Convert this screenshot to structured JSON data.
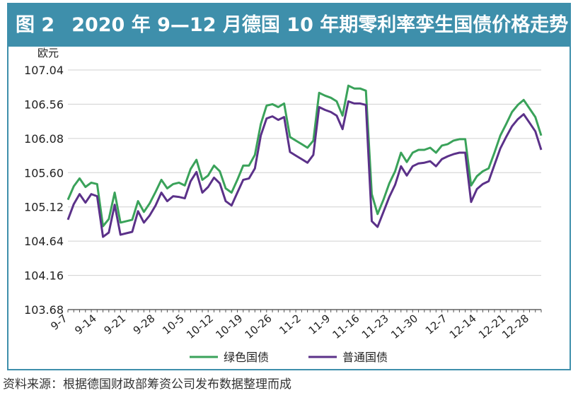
{
  "figure": {
    "label": "图 2",
    "title": "2020 年 9—12 月德国 10 年期零利率孪生国债价格走势"
  },
  "source_note": "资料来源：根据德国财政部筹资公司发布数据整理而成",
  "colors": {
    "green": "#3aa25a",
    "purple": "#5b3189",
    "frame": "#3e8fab",
    "grid": "#d0d0d0"
  },
  "chart_data": {
    "type": "line",
    "ylabel": "欧元",
    "xlabel": "",
    "ylim": [
      103.68,
      107.04
    ],
    "yticks": [
      "107.04",
      "106.56",
      "106.08",
      "105.60",
      "105.12",
      "104.64",
      "104.16",
      "103.68"
    ],
    "xticks": [
      "9-7",
      "9-14",
      "9-21",
      "9-28",
      "10-5",
      "10-12",
      "10-19",
      "10-26",
      "11-2",
      "11-9",
      "11-16",
      "11-23",
      "11-30",
      "12-7",
      "12-14",
      "12-21",
      "12-28"
    ],
    "grid": true,
    "legend_position": "bottom-center",
    "x": [
      "9-7",
      "9-8",
      "9-9",
      "9-10",
      "9-11",
      "9-14",
      "9-15",
      "9-16",
      "9-17",
      "9-18",
      "9-21",
      "9-22",
      "9-23",
      "9-24",
      "9-25",
      "9-28",
      "9-29",
      "9-30",
      "10-1",
      "10-2",
      "10-5",
      "10-6",
      "10-7",
      "10-8",
      "10-9",
      "10-12",
      "10-13",
      "10-14",
      "10-15",
      "10-16",
      "10-19",
      "10-20",
      "10-21",
      "10-22",
      "10-23",
      "10-26",
      "10-27",
      "10-28",
      "10-29",
      "10-30",
      "11-2",
      "11-3",
      "11-4",
      "11-5",
      "11-6",
      "11-9",
      "11-10",
      "11-11",
      "11-12",
      "11-13",
      "11-16",
      "11-17",
      "11-18",
      "11-19",
      "11-20",
      "11-23",
      "11-24",
      "11-25",
      "11-26",
      "11-27",
      "11-30",
      "12-1",
      "12-2",
      "12-3",
      "12-4",
      "12-7",
      "12-8",
      "12-9",
      "12-10",
      "12-11",
      "12-14",
      "12-15",
      "12-16",
      "12-17",
      "12-18",
      "12-21",
      "12-22",
      "12-23",
      "12-24",
      "12-28",
      "12-29",
      "12-30"
    ],
    "series": [
      {
        "name": "绿色国债",
        "color": "#3aa25a",
        "values": [
          105.22,
          105.41,
          105.52,
          105.4,
          105.46,
          105.44,
          104.85,
          104.95,
          105.32,
          104.9,
          104.92,
          104.94,
          105.2,
          105.05,
          105.17,
          105.33,
          105.5,
          105.38,
          105.44,
          105.46,
          105.42,
          105.65,
          105.78,
          105.5,
          105.56,
          105.7,
          105.62,
          105.38,
          105.32,
          105.5,
          105.7,
          105.7,
          105.85,
          106.28,
          106.54,
          106.56,
          106.52,
          106.57,
          106.1,
          106.05,
          106.0,
          105.95,
          106.05,
          106.72,
          106.68,
          106.65,
          106.6,
          106.4,
          106.82,
          106.78,
          106.78,
          106.75,
          105.3,
          105.02,
          105.22,
          105.45,
          105.62,
          105.88,
          105.75,
          105.88,
          105.92,
          105.92,
          105.95,
          105.88,
          105.98,
          106.0,
          106.05,
          106.07,
          106.07,
          105.42,
          105.55,
          105.62,
          105.66,
          105.88,
          106.12,
          106.28,
          106.45,
          106.55,
          106.62,
          106.5,
          106.38,
          106.12
        ]
      },
      {
        "name": "普通国债",
        "color": "#5b3189",
        "values": [
          104.94,
          105.16,
          105.3,
          105.18,
          105.3,
          105.27,
          104.7,
          104.76,
          105.15,
          104.73,
          104.75,
          104.77,
          105.06,
          104.9,
          105.0,
          105.14,
          105.32,
          105.2,
          105.27,
          105.26,
          105.24,
          105.48,
          105.61,
          105.32,
          105.4,
          105.53,
          105.45,
          105.2,
          105.14,
          105.32,
          105.5,
          105.52,
          105.66,
          106.12,
          106.36,
          106.39,
          106.34,
          106.38,
          105.89,
          105.84,
          105.79,
          105.74,
          105.85,
          106.52,
          106.48,
          106.45,
          106.4,
          106.21,
          106.6,
          106.57,
          106.57,
          106.55,
          104.92,
          104.84,
          105.05,
          105.26,
          105.43,
          105.69,
          105.56,
          105.69,
          105.73,
          105.74,
          105.76,
          105.69,
          105.79,
          105.83,
          105.86,
          105.88,
          105.88,
          105.19,
          105.37,
          105.44,
          105.48,
          105.71,
          105.94,
          106.1,
          106.25,
          106.35,
          106.42,
          106.3,
          106.18,
          105.92
        ]
      }
    ]
  }
}
